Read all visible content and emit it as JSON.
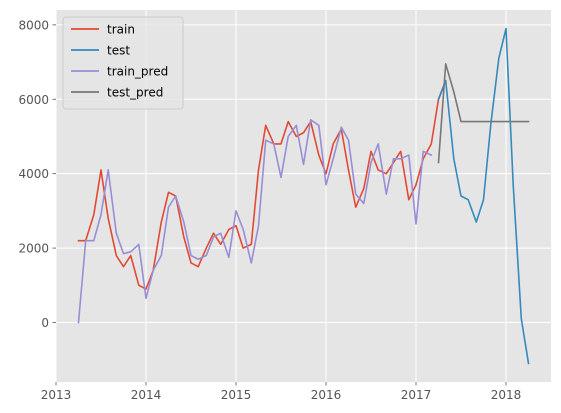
{
  "chart_data": {
    "type": "line",
    "title": "",
    "xlabel": "",
    "ylabel": "",
    "xlim": [
      2013.0,
      2018.5
    ],
    "ylim": [
      -1600,
      8400
    ],
    "grid": true,
    "legend_position": "top-left",
    "x_ticks": [
      2013,
      2014,
      2015,
      2016,
      2017,
      2018
    ],
    "x_tick_labels": [
      "2013",
      "2014",
      "2015",
      "2016",
      "2017",
      "2018"
    ],
    "y_ticks": [
      0,
      2000,
      4000,
      6000,
      8000
    ],
    "y_tick_labels": [
      "0",
      "2000",
      "4000",
      "6000",
      "8000"
    ],
    "colors": {
      "plot_background": "#e5e5e5",
      "grid": "#ffffff",
      "train": "#e24a33",
      "test": "#348abd",
      "train_pred": "#988ed5",
      "test_pred": "#777777"
    },
    "series": [
      {
        "name": "train",
        "color_key": "train",
        "points": [
          [
            2013.25,
            2200
          ],
          [
            2013.33,
            2200
          ],
          [
            2013.42,
            2900
          ],
          [
            2013.5,
            4100
          ],
          [
            2013.58,
            2800
          ],
          [
            2013.67,
            1800
          ],
          [
            2013.75,
            1500
          ],
          [
            2013.83,
            1800
          ],
          [
            2013.92,
            1000
          ],
          [
            2014.0,
            900
          ],
          [
            2014.08,
            1400
          ],
          [
            2014.17,
            2700
          ],
          [
            2014.25,
            3500
          ],
          [
            2014.33,
            3400
          ],
          [
            2014.42,
            2300
          ],
          [
            2014.5,
            1600
          ],
          [
            2014.58,
            1500
          ],
          [
            2014.67,
            2000
          ],
          [
            2014.75,
            2400
          ],
          [
            2014.83,
            2100
          ],
          [
            2014.92,
            2500
          ],
          [
            2015.0,
            2600
          ],
          [
            2015.08,
            2000
          ],
          [
            2015.17,
            2100
          ],
          [
            2015.25,
            4100
          ],
          [
            2015.33,
            5300
          ],
          [
            2015.42,
            4800
          ],
          [
            2015.5,
            4800
          ],
          [
            2015.58,
            5400
          ],
          [
            2015.67,
            5000
          ],
          [
            2015.75,
            5100
          ],
          [
            2015.83,
            5400
          ],
          [
            2015.92,
            4500
          ],
          [
            2016.0,
            4000
          ],
          [
            2016.08,
            4800
          ],
          [
            2016.17,
            5200
          ],
          [
            2016.25,
            4100
          ],
          [
            2016.33,
            3100
          ],
          [
            2016.42,
            3600
          ],
          [
            2016.5,
            4600
          ],
          [
            2016.58,
            4100
          ],
          [
            2016.67,
            4000
          ],
          [
            2016.75,
            4300
          ],
          [
            2016.83,
            4600
          ],
          [
            2016.92,
            3300
          ],
          [
            2017.0,
            3700
          ],
          [
            2017.08,
            4400
          ],
          [
            2017.17,
            4800
          ],
          [
            2017.25,
            6000
          ],
          [
            2017.33,
            6500
          ]
        ]
      },
      {
        "name": "test",
        "color_key": "test",
        "points": [
          [
            2017.25,
            6000
          ],
          [
            2017.33,
            6500
          ],
          [
            2017.42,
            4400
          ],
          [
            2017.5,
            3400
          ],
          [
            2017.58,
            3300
          ],
          [
            2017.67,
            2700
          ],
          [
            2017.75,
            3300
          ],
          [
            2017.83,
            5300
          ],
          [
            2017.92,
            7100
          ],
          [
            2018.0,
            7900
          ],
          [
            2018.08,
            3700
          ],
          [
            2018.17,
            100
          ],
          [
            2018.25,
            -1100
          ]
        ]
      },
      {
        "name": "train_pred",
        "color_key": "train_pred",
        "points": [
          [
            2013.25,
            0
          ],
          [
            2013.33,
            2200
          ],
          [
            2013.42,
            2200
          ],
          [
            2013.5,
            2900
          ],
          [
            2013.58,
            4100
          ],
          [
            2013.67,
            2400
          ],
          [
            2013.75,
            1850
          ],
          [
            2013.83,
            1900
          ],
          [
            2013.92,
            2100
          ],
          [
            2014.0,
            650
          ],
          [
            2014.08,
            1400
          ],
          [
            2014.17,
            1800
          ],
          [
            2014.25,
            3100
          ],
          [
            2014.33,
            3400
          ],
          [
            2014.42,
            2700
          ],
          [
            2014.5,
            1800
          ],
          [
            2014.58,
            1700
          ],
          [
            2014.67,
            1800
          ],
          [
            2014.75,
            2300
          ],
          [
            2014.83,
            2400
          ],
          [
            2014.92,
            1750
          ],
          [
            2015.0,
            3000
          ],
          [
            2015.08,
            2500
          ],
          [
            2015.17,
            1600
          ],
          [
            2015.25,
            2600
          ],
          [
            2015.33,
            4900
          ],
          [
            2015.42,
            4800
          ],
          [
            2015.5,
            3900
          ],
          [
            2015.58,
            5000
          ],
          [
            2015.67,
            5300
          ],
          [
            2015.75,
            4250
          ],
          [
            2015.83,
            5450
          ],
          [
            2015.92,
            5300
          ],
          [
            2016.0,
            3700
          ],
          [
            2016.08,
            4400
          ],
          [
            2016.17,
            5250
          ],
          [
            2016.25,
            4900
          ],
          [
            2016.33,
            3450
          ],
          [
            2016.42,
            3200
          ],
          [
            2016.5,
            4300
          ],
          [
            2016.58,
            4800
          ],
          [
            2016.67,
            3450
          ],
          [
            2016.75,
            4400
          ],
          [
            2016.83,
            4400
          ],
          [
            2016.92,
            4500
          ],
          [
            2017.0,
            2650
          ],
          [
            2017.08,
            4600
          ],
          [
            2017.17,
            4500
          ]
        ]
      },
      {
        "name": "test_pred",
        "color_key": "test_pred",
        "points": [
          [
            2017.25,
            4300
          ],
          [
            2017.33,
            6950
          ],
          [
            2017.42,
            6200
          ],
          [
            2017.5,
            5400
          ],
          [
            2017.58,
            5400
          ],
          [
            2017.67,
            5400
          ],
          [
            2017.75,
            5400
          ],
          [
            2017.83,
            5400
          ],
          [
            2017.92,
            5400
          ],
          [
            2018.0,
            5400
          ],
          [
            2018.08,
            5400
          ],
          [
            2018.17,
            5400
          ],
          [
            2018.25,
            5400
          ]
        ]
      }
    ]
  }
}
